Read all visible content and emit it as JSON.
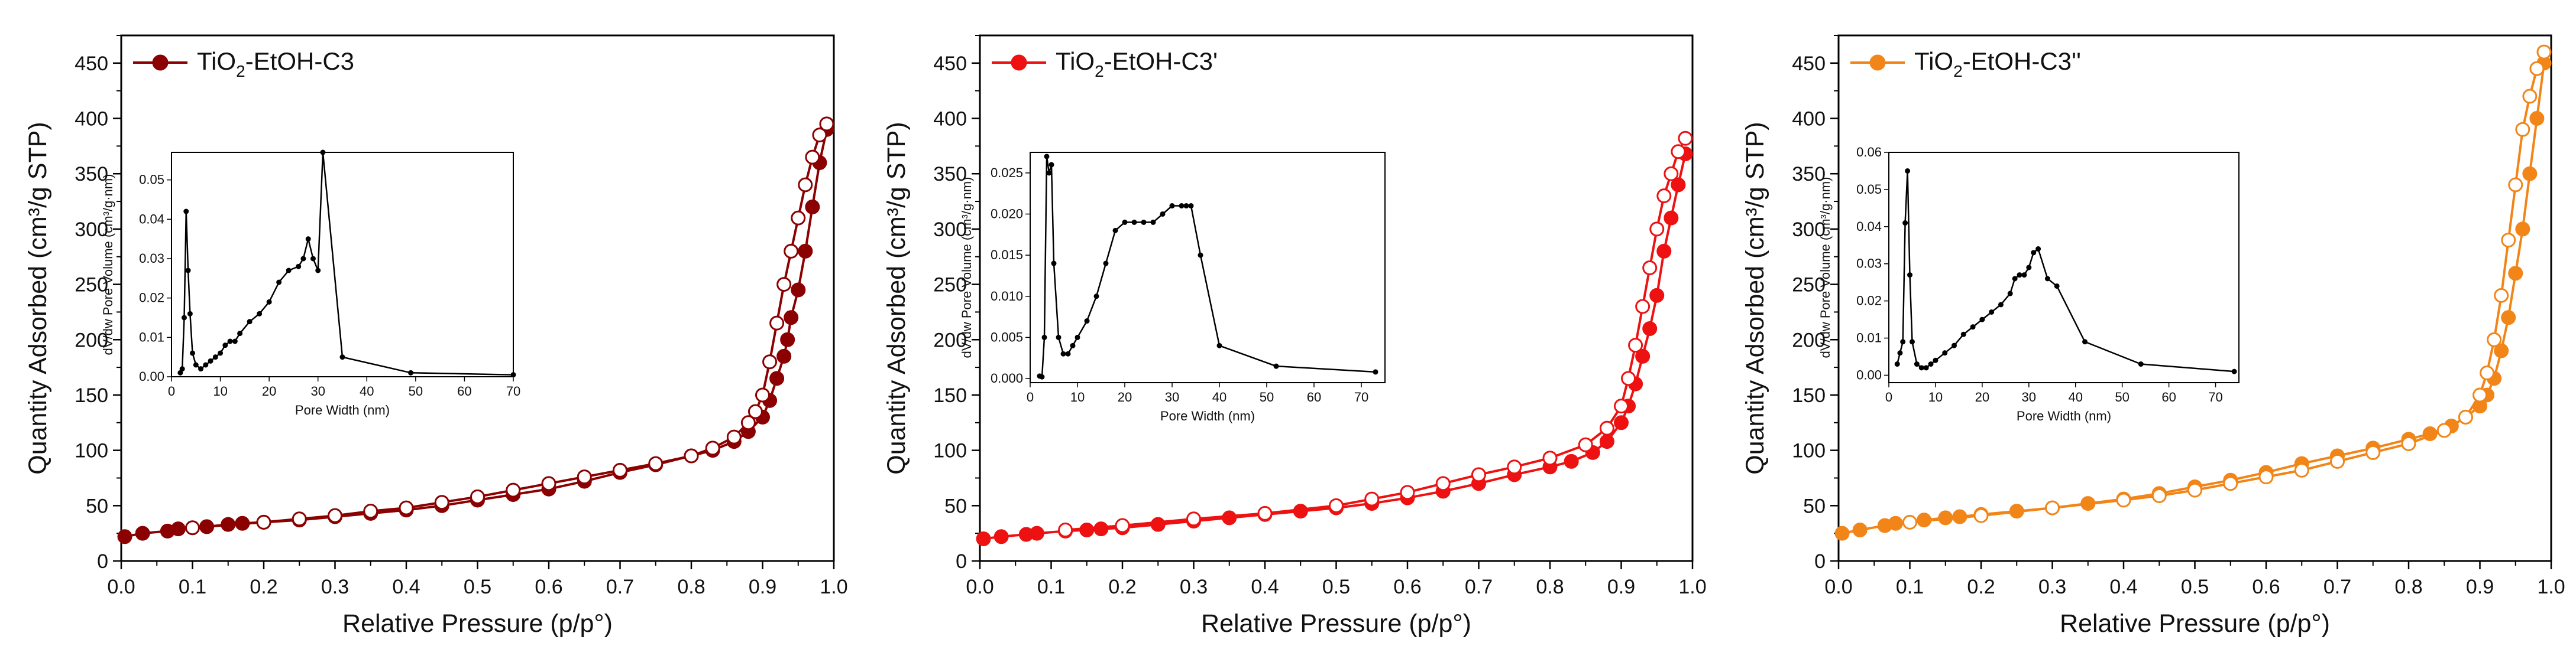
{
  "chart_data": [
    {
      "type": "line",
      "legend": {
        "prefix": "TiO",
        "subscript": "2",
        "suffix": "-EtOH-C3",
        "placement": "top-left"
      },
      "color": "#8B0000",
      "xlabel": "Relative Pressure (p/p°)",
      "ylabel": "Quantity Adsorbed (cm³/g STP)",
      "xlim": [
        0,
        1.0
      ],
      "ylim": [
        0,
        475
      ],
      "xticks": [
        "0.0",
        "0.1",
        "0.2",
        "0.3",
        "0.4",
        "0.5",
        "0.6",
        "0.7",
        "0.8",
        "0.9",
        "1.0"
      ],
      "yticks": [
        "0",
        "50",
        "100",
        "150",
        "200",
        "250",
        "300",
        "350",
        "400",
        "450"
      ],
      "series": [
        {
          "name": "Adsorption",
          "marker": "filled",
          "x": [
            0.005,
            0.03,
            0.065,
            0.08,
            0.12,
            0.15,
            0.17,
            0.2,
            0.25,
            0.3,
            0.35,
            0.4,
            0.45,
            0.5,
            0.55,
            0.6,
            0.65,
            0.7,
            0.75,
            0.8,
            0.83,
            0.86,
            0.88,
            0.9,
            0.91,
            0.92,
            0.93,
            0.935,
            0.94,
            0.95,
            0.96,
            0.97,
            0.98,
            0.99
          ],
          "y": [
            22,
            25,
            27,
            29,
            31,
            33,
            34,
            35,
            37,
            40,
            43,
            46,
            50,
            55,
            60,
            65,
            72,
            80,
            87,
            95,
            100,
            108,
            117,
            130,
            145,
            165,
            185,
            200,
            220,
            245,
            280,
            320,
            360,
            390
          ]
        },
        {
          "name": "Desorption",
          "marker": "open",
          "x": [
            0.1,
            0.2,
            0.25,
            0.3,
            0.35,
            0.4,
            0.45,
            0.5,
            0.55,
            0.6,
            0.65,
            0.7,
            0.75,
            0.8,
            0.83,
            0.86,
            0.88,
            0.89,
            0.9,
            0.91,
            0.92,
            0.93,
            0.94,
            0.95,
            0.96,
            0.97,
            0.98,
            0.99
          ],
          "y": [
            30,
            35,
            38,
            41,
            45,
            48,
            53,
            58,
            64,
            70,
            76,
            82,
            88,
            95,
            102,
            112,
            125,
            135,
            150,
            180,
            215,
            250,
            280,
            310,
            340,
            365,
            385,
            395
          ]
        }
      ],
      "inset": {
        "xlabel": "Pore Width (nm)",
        "ylabel": "dV/dw Pore Volume (cm³/g·nm)",
        "xlim": [
          0,
          70
        ],
        "ylim": [
          0,
          0.057
        ],
        "xticks": [
          "0",
          "10",
          "20",
          "30",
          "40",
          "50",
          "60",
          "70"
        ],
        "yticks": [
          "0.00",
          "0.01",
          "0.02",
          "0.03",
          "0.04",
          "0.05"
        ],
        "x": [
          1.8,
          2.2,
          2.6,
          3.0,
          3.4,
          3.8,
          4.3,
          5.0,
          6.0,
          7.0,
          8.0,
          9.0,
          10.0,
          11.0,
          12.0,
          13.0,
          14.0,
          16.0,
          18.0,
          20.0,
          22.0,
          24.0,
          26.0,
          27.0,
          28.0,
          29.0,
          30.0,
          31.0,
          35.0,
          49.0,
          70.0
        ],
        "y": [
          0.001,
          0.002,
          0.015,
          0.042,
          0.027,
          0.016,
          0.006,
          0.003,
          0.002,
          0.003,
          0.004,
          0.005,
          0.006,
          0.008,
          0.009,
          0.009,
          0.011,
          0.014,
          0.016,
          0.019,
          0.024,
          0.027,
          0.028,
          0.03,
          0.035,
          0.03,
          0.027,
          0.057,
          0.005,
          0.001,
          0.0005
        ]
      }
    },
    {
      "type": "line",
      "legend": {
        "prefix": "TiO",
        "subscript": "2",
        "suffix": "-EtOH-C3'",
        "placement": "top-left"
      },
      "color": "#EE1111",
      "xlabel": "Relative Pressure (p/p°)",
      "ylabel": "Quantity Adsorbed (cm³/g STP)",
      "xlim": [
        0,
        1.0
      ],
      "ylim": [
        0,
        475
      ],
      "xticks": [
        "0.0",
        "0.1",
        "0.2",
        "0.3",
        "0.4",
        "0.5",
        "0.6",
        "0.7",
        "0.8",
        "0.9",
        "1.0"
      ],
      "yticks": [
        "0",
        "50",
        "100",
        "150",
        "200",
        "250",
        "300",
        "350",
        "400",
        "450"
      ],
      "series": [
        {
          "name": "Adsorption",
          "marker": "filled",
          "x": [
            0.005,
            0.03,
            0.065,
            0.08,
            0.12,
            0.15,
            0.17,
            0.2,
            0.25,
            0.3,
            0.35,
            0.4,
            0.45,
            0.5,
            0.55,
            0.6,
            0.65,
            0.7,
            0.75,
            0.8,
            0.83,
            0.86,
            0.88,
            0.9,
            0.91,
            0.92,
            0.93,
            0.94,
            0.95,
            0.96,
            0.97,
            0.98,
            0.99
          ],
          "y": [
            20,
            22,
            24,
            25,
            27,
            28,
            29,
            30,
            33,
            36,
            39,
            42,
            45,
            48,
            52,
            57,
            63,
            70,
            78,
            85,
            90,
            98,
            108,
            125,
            140,
            160,
            185,
            210,
            240,
            280,
            310,
            340,
            368
          ]
        },
        {
          "name": "Desorption",
          "marker": "open",
          "x": [
            0.12,
            0.2,
            0.3,
            0.4,
            0.5,
            0.55,
            0.6,
            0.65,
            0.7,
            0.75,
            0.8,
            0.85,
            0.88,
            0.9,
            0.91,
            0.92,
            0.93,
            0.94,
            0.95,
            0.96,
            0.97,
            0.98,
            0.99
          ],
          "y": [
            28,
            32,
            38,
            43,
            50,
            56,
            62,
            70,
            78,
            85,
            93,
            105,
            120,
            140,
            165,
            195,
            230,
            265,
            300,
            330,
            350,
            370,
            382
          ]
        }
      ],
      "inset": {
        "xlabel": "Pore Width (nm)",
        "ylabel": "dV/dw Pore Volume (cm³/g·nm)",
        "xlim": [
          0,
          75
        ],
        "ylim": [
          -0.0005,
          0.0275
        ],
        "xticks": [
          "0",
          "10",
          "20",
          "30",
          "40",
          "50",
          "60",
          "70"
        ],
        "yticks": [
          "0.000",
          "0.005",
          "0.010",
          "0.015",
          "0.020",
          "0.025"
        ],
        "x": [
          2.0,
          2.5,
          3.0,
          3.5,
          4.0,
          4.5,
          5.0,
          6.0,
          7.0,
          8.0,
          9.0,
          10.0,
          12.0,
          14.0,
          16.0,
          18.0,
          20.0,
          22.0,
          24.0,
          26.0,
          28.0,
          30.0,
          32.0,
          33.0,
          34.0,
          36.0,
          40.0,
          52.0,
          73.0
        ],
        "y": [
          0.0003,
          0.0002,
          0.005,
          0.027,
          0.025,
          0.026,
          0.014,
          0.005,
          0.003,
          0.003,
          0.004,
          0.005,
          0.007,
          0.01,
          0.014,
          0.018,
          0.019,
          0.019,
          0.019,
          0.019,
          0.02,
          0.021,
          0.021,
          0.021,
          0.021,
          0.015,
          0.004,
          0.0015,
          0.0008
        ]
      }
    },
    {
      "type": "line",
      "legend": {
        "prefix": "TiO",
        "subscript": "2",
        "suffix": "-EtOH-C3''",
        "placement": "top-left"
      },
      "color": "#F28518",
      "xlabel": "Relative Pressure (p/p°)",
      "ylabel": "Quantity Adsorbed (cm³/g STP)",
      "xlim": [
        0,
        1.0
      ],
      "ylim": [
        0,
        475
      ],
      "xticks": [
        "0.0",
        "0.1",
        "0.2",
        "0.3",
        "0.4",
        "0.5",
        "0.6",
        "0.7",
        "0.8",
        "0.9",
        "1.0"
      ],
      "yticks": [
        "0",
        "50",
        "100",
        "150",
        "200",
        "250",
        "300",
        "350",
        "400",
        "450"
      ],
      "series": [
        {
          "name": "Adsorption",
          "marker": "filled",
          "x": [
            0.005,
            0.03,
            0.065,
            0.08,
            0.12,
            0.15,
            0.17,
            0.2,
            0.25,
            0.3,
            0.35,
            0.4,
            0.45,
            0.5,
            0.55,
            0.6,
            0.65,
            0.7,
            0.75,
            0.8,
            0.83,
            0.86,
            0.88,
            0.9,
            0.91,
            0.92,
            0.93,
            0.94,
            0.95,
            0.96,
            0.97,
            0.98,
            0.99
          ],
          "y": [
            25,
            28,
            32,
            34,
            37,
            39,
            40,
            42,
            45,
            48,
            52,
            56,
            61,
            67,
            73,
            80,
            88,
            95,
            102,
            110,
            115,
            122,
            130,
            140,
            150,
            165,
            190,
            220,
            260,
            300,
            350,
            400,
            450
          ]
        },
        {
          "name": "Desorption",
          "marker": "open",
          "x": [
            0.1,
            0.2,
            0.3,
            0.4,
            0.45,
            0.5,
            0.55,
            0.6,
            0.65,
            0.7,
            0.75,
            0.8,
            0.85,
            0.88,
            0.9,
            0.91,
            0.92,
            0.93,
            0.94,
            0.95,
            0.96,
            0.97,
            0.98,
            0.99
          ],
          "y": [
            35,
            41,
            48,
            55,
            59,
            64,
            70,
            76,
            82,
            90,
            98,
            106,
            118,
            130,
            150,
            170,
            200,
            240,
            290,
            340,
            390,
            420,
            445,
            460
          ]
        }
      ],
      "inset": {
        "xlabel": "Pore Width (nm)",
        "ylabel": "dV/dw Pore Volume (cm³/g·nm)",
        "xlim": [
          0,
          75
        ],
        "ylim": [
          -0.002,
          0.06
        ],
        "xticks": [
          "0",
          "10",
          "20",
          "30",
          "40",
          "50",
          "60",
          "70"
        ],
        "yticks": [
          "0.00",
          "0.01",
          "0.02",
          "0.03",
          "0.04",
          "0.05",
          "0.06"
        ],
        "x": [
          1.8,
          2.4,
          3.0,
          3.5,
          4.0,
          4.5,
          5.0,
          6.0,
          7.0,
          8.0,
          9.0,
          10.0,
          12.0,
          14.0,
          16.0,
          18.0,
          20.0,
          22.0,
          24.0,
          26.0,
          27.0,
          28.0,
          29.0,
          30.0,
          31.0,
          32.0,
          34.0,
          36.0,
          42.0,
          54.0,
          74.0
        ],
        "y": [
          0.003,
          0.006,
          0.009,
          0.041,
          0.055,
          0.027,
          0.009,
          0.003,
          0.002,
          0.002,
          0.003,
          0.004,
          0.006,
          0.008,
          0.011,
          0.013,
          0.015,
          0.017,
          0.019,
          0.022,
          0.026,
          0.027,
          0.027,
          0.029,
          0.033,
          0.034,
          0.026,
          0.024,
          0.009,
          0.003,
          0.001
        ]
      }
    }
  ]
}
